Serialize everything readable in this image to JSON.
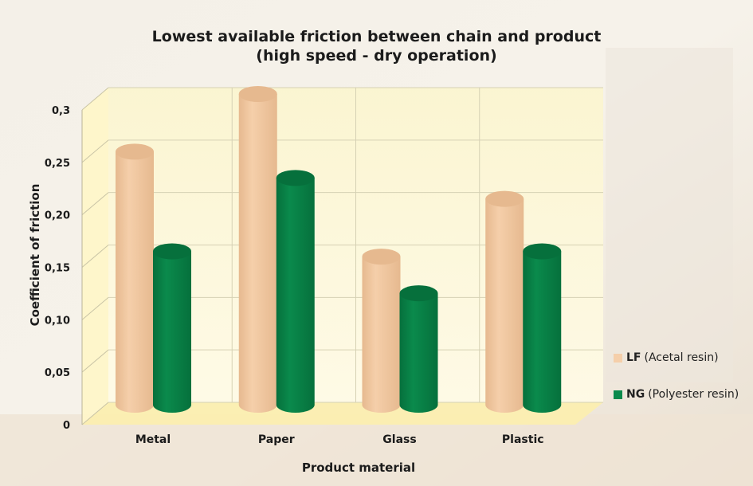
{
  "chart_data": {
    "type": "bar",
    "title_line1": "Lowest available friction between chain and product",
    "title_line2": "(high speed - dry operation)",
    "xlabel": "Product material",
    "ylabel": "Coefficient of friction",
    "categories": [
      "Metal",
      "Paper",
      "Glass",
      "Plastic"
    ],
    "y_ticks": [
      "0",
      "0,05",
      "0,10",
      "0,15",
      "0,20",
      "0,25",
      "0,3"
    ],
    "ylim": [
      0,
      0.3
    ],
    "grid": true,
    "legend_position": "right",
    "series": [
      {
        "name": "LF",
        "desc": "(Acetal resin)",
        "color": "#f5cfaa",
        "values": [
          0.245,
          0.3,
          0.145,
          0.2
        ]
      },
      {
        "name": "NG",
        "desc": "(Polyester resin)",
        "color": "#0a8a4c",
        "values": [
          0.15,
          0.22,
          0.11,
          0.15
        ]
      }
    ]
  }
}
